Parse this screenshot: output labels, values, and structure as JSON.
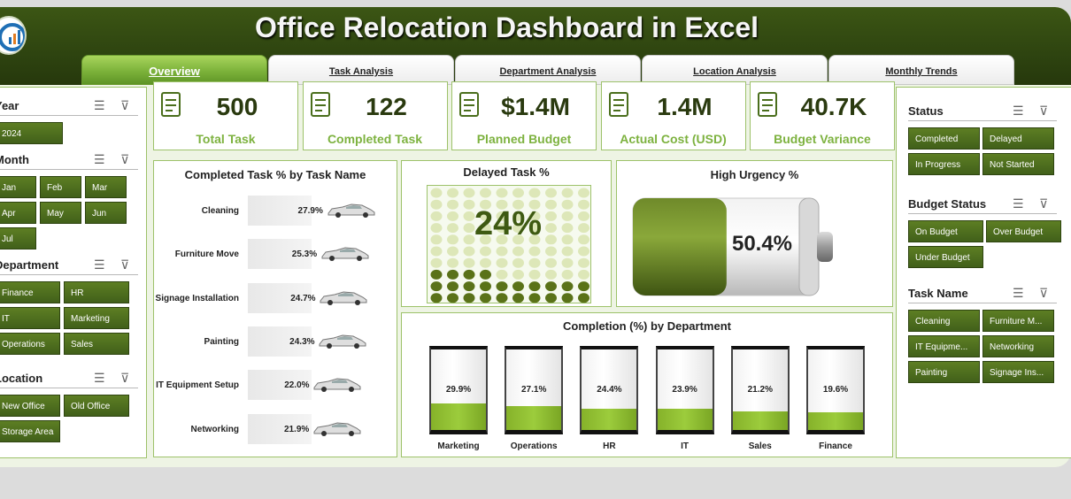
{
  "title": "Office Relocation Dashboard in Excel",
  "tabs": [
    {
      "label": "Overview"
    },
    {
      "label": "Task Analysis"
    },
    {
      "label": "Department Analysis"
    },
    {
      "label": "Location Analysis"
    },
    {
      "label": "Monthly Trends"
    }
  ],
  "left_slicers": {
    "year": {
      "title": "Year",
      "items": [
        "2024"
      ]
    },
    "month": {
      "title": "Month",
      "items": [
        "Jan",
        "Feb",
        "Mar",
        "Apr",
        "May",
        "Jun",
        "Jul"
      ]
    },
    "department": {
      "title": "Department",
      "items": [
        "Finance",
        "HR",
        "IT",
        "Marketing",
        "Operations",
        "Sales"
      ]
    },
    "location": {
      "title": "Location",
      "items": [
        "New Office",
        "Old Office",
        "Storage Area"
      ]
    }
  },
  "right_slicers": {
    "status": {
      "title": "Status",
      "items": [
        "Completed",
        "Delayed",
        "In Progress",
        "Not Started"
      ]
    },
    "budget_status": {
      "title": "Budget Status",
      "items": [
        "On Budget",
        "Over Budget",
        "Under Budget"
      ]
    },
    "task_name": {
      "title": "Task Name",
      "items": [
        "Cleaning",
        "Furniture M...",
        "IT Equipme...",
        "Networking",
        "Painting",
        "Signage Ins..."
      ]
    }
  },
  "kpis": [
    {
      "value": "500",
      "label": "Total Task",
      "icon": "clipboard-icon"
    },
    {
      "value": "122",
      "label": "Completed Task",
      "icon": "checklist-icon"
    },
    {
      "value": "$1.4M",
      "label": "Planned Budget",
      "icon": "plan-icon"
    },
    {
      "value": "1.4M",
      "label": "Actual Cost (USD)",
      "icon": "money-hand-icon"
    },
    {
      "value": "40.7K",
      "label": "Budget Variance",
      "icon": "cash-icon"
    }
  ],
  "charts": {
    "completed_by_task": {
      "title": "Completed Task % by Task Name",
      "rows": [
        {
          "name": "Cleaning",
          "label": "27.9%"
        },
        {
          "name": "Furniture Move",
          "label": "25.3%"
        },
        {
          "name": "Signage Installation",
          "label": "24.7%"
        },
        {
          "name": "Painting",
          "label": "24.3%"
        },
        {
          "name": "IT Equipment Setup",
          "label": "22.0%"
        },
        {
          "name": "Networking",
          "label": "21.9%"
        }
      ]
    },
    "delayed": {
      "title": "Delayed Task %",
      "value_label": "24%"
    },
    "urgency": {
      "title": "High Urgency %",
      "value_label": "50.4%"
    },
    "by_department": {
      "title": "Completion (%) by Department",
      "cols": [
        {
          "name": "Marketing",
          "label": "29.9%"
        },
        {
          "name": "Operations",
          "label": "27.1%"
        },
        {
          "name": "HR",
          "label": "24.4%"
        },
        {
          "name": "IT",
          "label": "23.9%"
        },
        {
          "name": "Sales",
          "label": "21.2%"
        },
        {
          "name": "Finance",
          "label": "19.6%"
        }
      ]
    }
  },
  "chart_data": [
    {
      "type": "bar",
      "title": "Completed Task % by Task Name",
      "categories": [
        "Cleaning",
        "Furniture Move",
        "Signage Installation",
        "Painting",
        "IT Equipment Setup",
        "Networking"
      ],
      "values": [
        27.9,
        25.3,
        24.7,
        24.3,
        22.0,
        21.9
      ]
    },
    {
      "type": "pie",
      "title": "Delayed Task %",
      "values": [
        24
      ]
    },
    {
      "type": "bar",
      "title": "High Urgency %",
      "values": [
        50.4
      ]
    },
    {
      "type": "bar",
      "title": "Completion (%) by Department",
      "categories": [
        "Marketing",
        "Operations",
        "HR",
        "IT",
        "Sales",
        "Finance"
      ],
      "values": [
        29.9,
        27.1,
        24.4,
        23.9,
        21.2,
        19.6
      ]
    }
  ],
  "colors": {
    "accent": "#4a6e1c",
    "header": "#2e4410",
    "kpi_label": "#7db23f",
    "fill": "#9ccc3c"
  }
}
